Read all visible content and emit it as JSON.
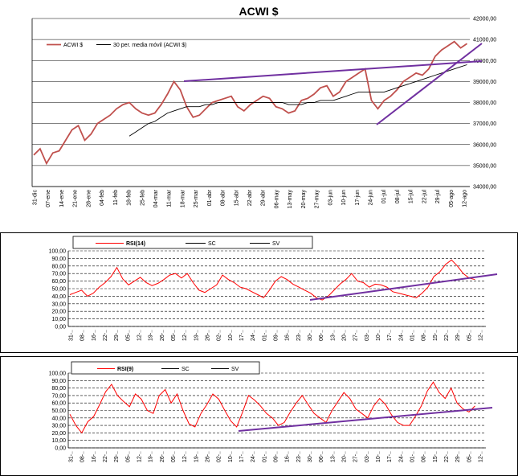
{
  "chart_data": [
    {
      "type": "line",
      "title": "ACWI $",
      "legend": [
        "ACWI $",
        "30 per. media móvil (ACWI $)"
      ],
      "legend_position": "top-left",
      "ylim": [
        34000,
        42000
      ],
      "y_ticks": [
        "34000,00",
        "35000,00",
        "36000,00",
        "37000,00",
        "38000,00",
        "39000,00",
        "40000,00",
        "41000,00",
        "42000,00"
      ],
      "x_ticks": [
        "31-dic",
        "07-ene",
        "14-ene",
        "21-ene",
        "28-ene",
        "04-feb",
        "11-feb",
        "18-feb",
        "25-feb",
        "04-mar",
        "11-mar",
        "18-mar",
        "25-mar",
        "01-abr",
        "08-abr",
        "15-abr",
        "22-abr",
        "29-abr",
        "06-may",
        "13-may",
        "20-may",
        "27-may",
        "03-jun",
        "10-jun",
        "17-jun",
        "24-jun",
        "01-jul",
        "08-jul",
        "15-jul",
        "22-jul",
        "29-jul",
        "05-ago",
        "12-ago"
      ],
      "series": [
        {
          "name": "ACWI $",
          "color": "#c0504d",
          "values": [
            35500,
            35800,
            35100,
            35600,
            35700,
            36200,
            36700,
            36900,
            36200,
            36500,
            37000,
            37200,
            37400,
            37700,
            37900,
            38000,
            37700,
            37500,
            37400,
            37500,
            37900,
            38400,
            39000,
            38600,
            37800,
            37300,
            37400,
            37700,
            38000,
            38100,
            38200,
            38300,
            37800,
            37600,
            37900,
            38100,
            38300,
            38200,
            37800,
            37700,
            37500,
            37600,
            38100,
            38200,
            38400,
            38700,
            38800,
            38300,
            38500,
            39000,
            39200,
            39400,
            39600,
            38100,
            37700,
            38100,
            38300,
            38600,
            39000,
            39200,
            39400,
            39300,
            39600,
            40200,
            40500,
            40700,
            40900,
            40600,
            40800
          ]
        },
        {
          "name": "30 per. media móvil (ACWI $)",
          "color": "#000000",
          "values": [
            null,
            null,
            null,
            null,
            null,
            null,
            null,
            null,
            null,
            null,
            null,
            null,
            null,
            null,
            null,
            36400,
            36600,
            36800,
            37000,
            37100,
            37300,
            37500,
            37600,
            37700,
            37800,
            37800,
            37800,
            37900,
            37900,
            38000,
            38000,
            38000,
            38000,
            38000,
            38000,
            38000,
            38000,
            38000,
            38000,
            38000,
            37900,
            37900,
            37900,
            38000,
            38000,
            38100,
            38100,
            38100,
            38200,
            38300,
            38400,
            38500,
            38500,
            38500,
            38500,
            38500,
            38600,
            38700,
            38800,
            38900,
            39000,
            39100,
            39200,
            39300,
            39400,
            39500,
            39600,
            39700,
            39800
          ]
        }
      ],
      "trendlines_color": "#7030a0"
    },
    {
      "type": "line",
      "title": "RSI(14)",
      "legend": [
        "RSI(14)",
        "SC",
        "SV"
      ],
      "legend_position": "top",
      "ylim": [
        0,
        100
      ],
      "y_ticks": [
        "0,00",
        "10,00",
        "20,00",
        "30,00",
        "40,00",
        "50,00",
        "60,00",
        "70,00",
        "80,00",
        "90,00",
        "100,00"
      ],
      "x_ticks": [
        "31-..",
        "08-..",
        "16-..",
        "22-..",
        "29-..",
        "05-..",
        "12-..",
        "19-..",
        "26-..",
        "05-..",
        "12-..",
        "19-..",
        "26-..",
        "02-..",
        "10-..",
        "17-..",
        "24-..",
        "01-..",
        "09-..",
        "16-..",
        "23-..",
        "30-..",
        "06-..",
        "13-..",
        "20-..",
        "27-..",
        "03-..",
        "10-..",
        "17-..",
        "24-..",
        "01-..",
        "08-..",
        "15-..",
        "22-..",
        "29-..",
        "05-..",
        "12-.."
      ],
      "series": [
        {
          "name": "RSI(14)",
          "color": "#ff0000",
          "values": [
            42,
            45,
            48,
            40,
            44,
            52,
            58,
            66,
            78,
            63,
            55,
            60,
            65,
            58,
            54,
            57,
            62,
            68,
            70,
            64,
            70,
            58,
            48,
            45,
            50,
            55,
            68,
            62,
            58,
            52,
            50,
            46,
            42,
            38,
            48,
            60,
            66,
            62,
            56,
            52,
            48,
            44,
            38,
            35,
            40,
            48,
            56,
            62,
            70,
            60,
            58,
            52,
            56,
            55,
            52,
            46,
            44,
            42,
            40,
            38,
            44,
            52,
            66,
            72,
            82,
            88,
            80,
            70,
            64,
            62
          ]
        }
      ],
      "trendlines_color": "#7030a0"
    },
    {
      "type": "line",
      "title": "RSI(9)",
      "legend": [
        "RSI(9)",
        "SC",
        "SV"
      ],
      "legend_position": "top",
      "ylim": [
        0,
        100
      ],
      "y_ticks": [
        "0,00",
        "10,00",
        "20,00",
        "30,00",
        "40,00",
        "50,00",
        "60,00",
        "70,00",
        "80,00",
        "90,00",
        "100,00"
      ],
      "x_ticks": [
        "31-..",
        "08-..",
        "16-..",
        "22-..",
        "29-..",
        "05-..",
        "12-..",
        "19-..",
        "26-..",
        "05-..",
        "12-..",
        "19-..",
        "26-..",
        "02-..",
        "10-..",
        "17-..",
        "24-..",
        "01-..",
        "09-..",
        "16-..",
        "23-..",
        "30-..",
        "06-..",
        "13-..",
        "20-..",
        "27-..",
        "03-..",
        "10-..",
        "17-..",
        "24-..",
        "01-..",
        "08-..",
        "15-..",
        "22-..",
        "29-..",
        "05-..",
        "12-.."
      ],
      "series": [
        {
          "name": "RSI(9)",
          "color": "#ff0000",
          "values": [
            45,
            30,
            20,
            35,
            42,
            58,
            75,
            85,
            70,
            62,
            55,
            72,
            65,
            50,
            46,
            70,
            78,
            60,
            72,
            50,
            32,
            28,
            46,
            58,
            72,
            65,
            50,
            36,
            28,
            48,
            70,
            64,
            56,
            46,
            40,
            30,
            34,
            48,
            60,
            70,
            58,
            46,
            40,
            34,
            50,
            62,
            74,
            66,
            52,
            46,
            40,
            56,
            66,
            58,
            44,
            34,
            30,
            30,
            42,
            56,
            76,
            88,
            74,
            66,
            80,
            60,
            52,
            48,
            56
          ]
        }
      ],
      "trendlines_color": "#7030a0"
    }
  ]
}
